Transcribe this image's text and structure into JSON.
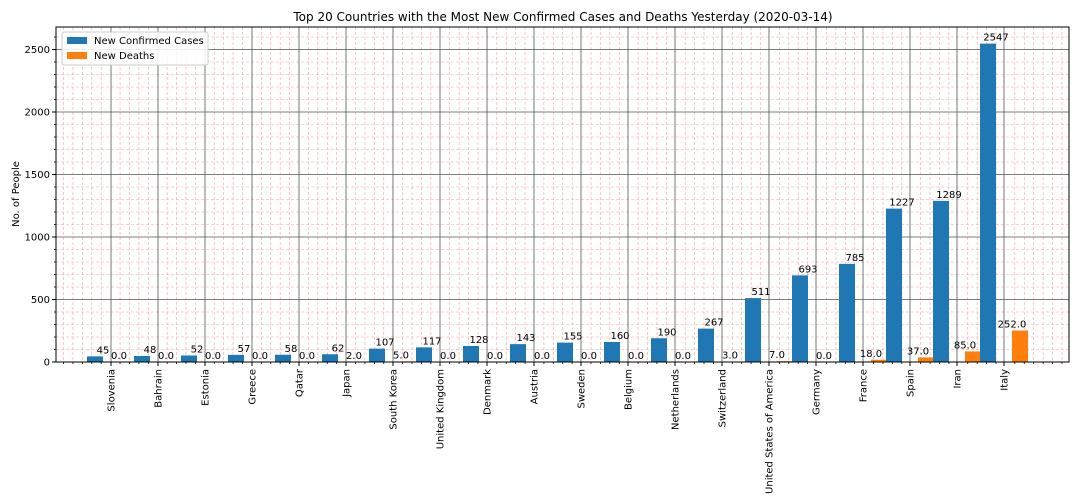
{
  "chart_data": {
    "type": "bar",
    "title": "Top 20 Countries with the Most New Confirmed Cases and Deaths Yesterday (2020-03-14)",
    "xlabel": "",
    "ylabel": "No. of People",
    "ylim": [
      0,
      2680
    ],
    "yticks": [
      0,
      500,
      1000,
      1500,
      2000,
      2500
    ],
    "grid": "major dark gray, minor dashed red",
    "legend_position": "top-left",
    "categories": [
      "Slovenia",
      "Bahrain",
      "Estonia",
      "Greece",
      "Qatar",
      "Japan",
      "South Korea",
      "United Kingdom",
      "Denmark",
      "Austria",
      "Sweden",
      "Belgium",
      "Netherlands",
      "Switzerland",
      "United States of America",
      "Germany",
      "France",
      "Spain",
      "Iran",
      "Italy"
    ],
    "series": [
      {
        "name": "New Confirmed Cases",
        "color": "#1f77b4",
        "values": [
          45,
          48,
          52,
          57,
          58,
          62,
          107,
          117,
          128,
          143,
          155,
          160,
          190,
          267,
          511,
          693,
          785,
          1227,
          1289,
          2547
        ],
        "labels": [
          "45",
          "48",
          "52",
          "57",
          "58",
          "62",
          "107",
          "117",
          "128",
          "143",
          "155",
          "160",
          "190",
          "267",
          "511",
          "693",
          "785",
          "1227",
          "1289",
          "2547"
        ]
      },
      {
        "name": "New Deaths",
        "color": "#ff7f0e",
        "values": [
          0,
          0,
          0,
          0,
          0,
          2,
          5,
          0,
          0,
          0,
          0,
          0,
          0,
          3,
          7,
          0,
          18,
          37,
          85,
          252
        ],
        "labels": [
          "0.0",
          "0.0",
          "0.0",
          "0.0",
          "0.0",
          "2.0",
          "5.0",
          "0.0",
          "0.0",
          "0.0",
          "0.0",
          "0.0",
          "0.0",
          "3.0",
          "7.0",
          "0.0",
          "18.0",
          "37.0",
          "85.0",
          "252.0"
        ]
      }
    ]
  }
}
